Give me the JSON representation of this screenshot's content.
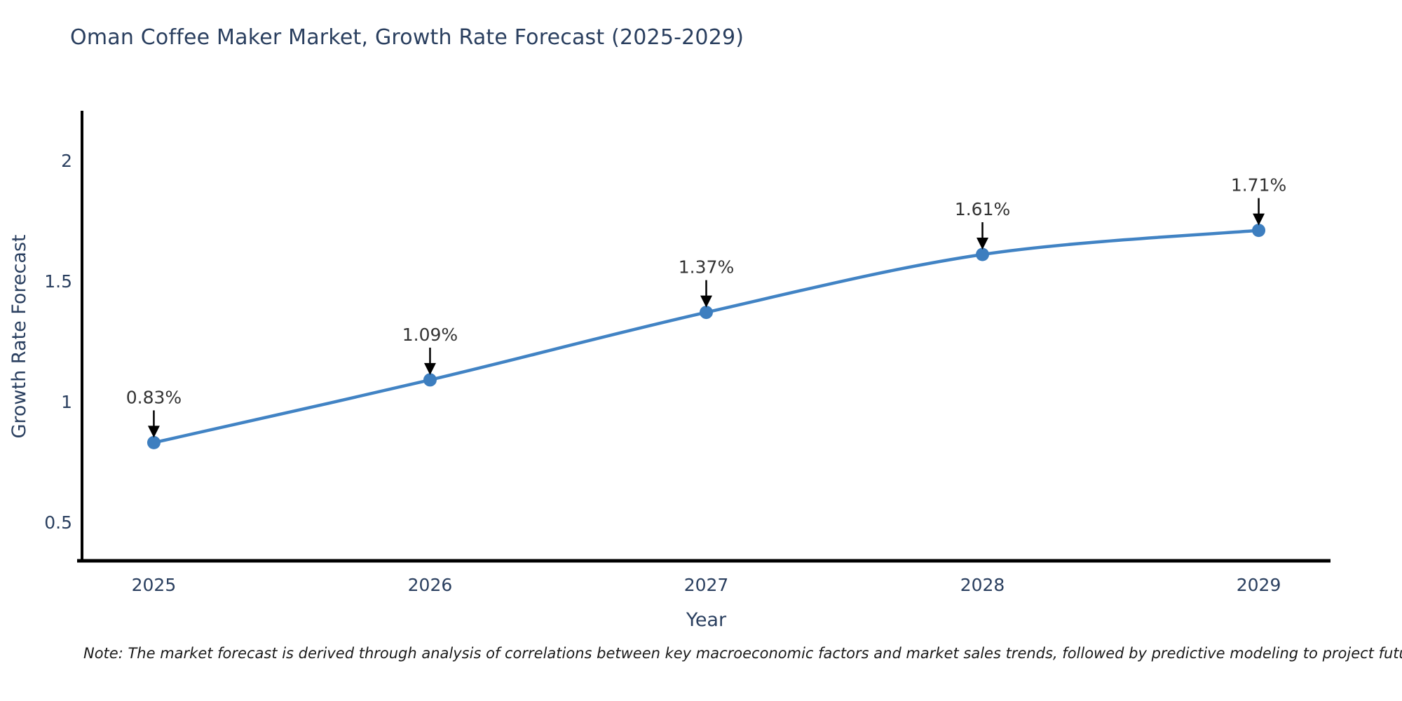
{
  "page": {
    "note": "Note: The market forecast is derived through analysis of correlations between key macroeconomic factors and market sales trends, followed by predictive modeling to project future sales"
  },
  "chart_data": {
    "type": "line",
    "title": "Oman Coffee Maker Market, Growth Rate Forecast (2025-2029)",
    "x": [
      2025,
      2026,
      2027,
      2028,
      2029
    ],
    "y": [
      0.83,
      1.09,
      1.37,
      1.61,
      1.71
    ],
    "point_labels": [
      "0.83%",
      "1.09%",
      "1.37%",
      "1.61%",
      "1.71%"
    ],
    "xlabel": "Year",
    "ylabel": "Growth Rate Forecast",
    "x_tick_labels": [
      "2025",
      "2026",
      "2027",
      "2028",
      "2029"
    ],
    "x_tick_values": [
      2025,
      2026,
      2027,
      2028,
      2029
    ],
    "y_tick_labels": [
      "0.5",
      "1",
      "1.5",
      "2"
    ],
    "y_tick_values": [
      0.5,
      1,
      1.5,
      2
    ],
    "xlim": [
      2024.74,
      2029.26
    ],
    "ylim": [
      0.34,
      2.2
    ],
    "grid": false,
    "legend": false,
    "line_shape": "spline",
    "annotations_arrow": "down",
    "colors": {
      "line": "#4183c4",
      "marker": "#3d7ebf",
      "axis": "#000000",
      "tick_label": "#2a3f5f",
      "axis_title": "#2a3f5f",
      "chart_title": "#2a3f5f",
      "annotation_text": "#333333",
      "annotation_arrow": "#000000",
      "background": "#ffffff"
    }
  }
}
